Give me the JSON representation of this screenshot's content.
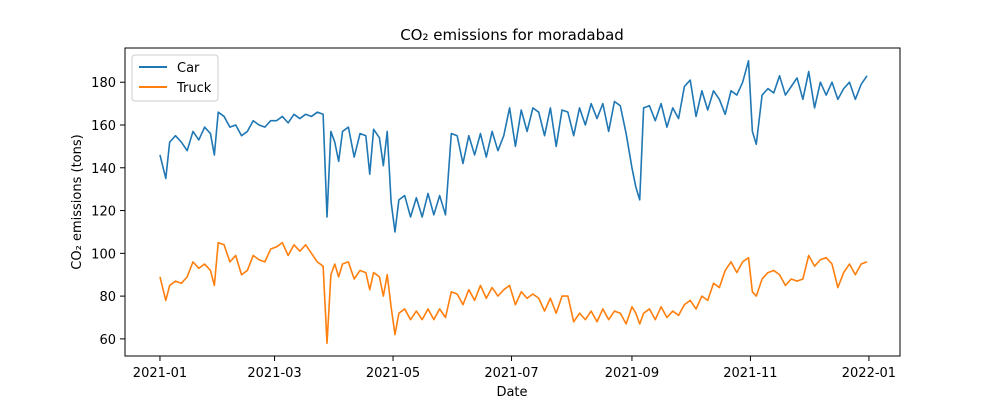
{
  "chart_data": {
    "type": "line",
    "title": "CO₂ emissions for moradabad",
    "xlabel": "Date",
    "ylabel": "CO₂ emissions (tons)",
    "xlim": [
      "2020-12-14",
      "2022-01-17"
    ],
    "ylim": [
      52,
      196
    ],
    "x_ticks": [
      "2021-01-01",
      "2021-03-01",
      "2021-05-01",
      "2021-07-01",
      "2021-09-01",
      "2021-11-01",
      "2022-01-01"
    ],
    "x_tick_labels": [
      "2021-01",
      "2021-03",
      "2021-05",
      "2021-07",
      "2021-09",
      "2021-11",
      "2022-01"
    ],
    "y_ticks": [
      60,
      80,
      100,
      120,
      140,
      160,
      180
    ],
    "y_tick_labels": [
      "60",
      "80",
      "100",
      "120",
      "140",
      "160",
      "180"
    ],
    "legend_position": "top-left",
    "grid": false,
    "series": [
      {
        "name": "Car",
        "color": "#1f77b4",
        "points": [
          [
            "2021-01-01",
            146
          ],
          [
            "2021-01-04",
            135
          ],
          [
            "2021-01-06",
            152
          ],
          [
            "2021-01-09",
            155
          ],
          [
            "2021-01-12",
            152
          ],
          [
            "2021-01-15",
            148
          ],
          [
            "2021-01-18",
            157
          ],
          [
            "2021-01-21",
            153
          ],
          [
            "2021-01-24",
            159
          ],
          [
            "2021-01-27",
            156
          ],
          [
            "2021-01-29",
            146
          ],
          [
            "2021-01-31",
            166
          ],
          [
            "2021-02-03",
            164
          ],
          [
            "2021-02-06",
            159
          ],
          [
            "2021-02-09",
            160
          ],
          [
            "2021-02-12",
            155
          ],
          [
            "2021-02-15",
            157
          ],
          [
            "2021-02-18",
            162
          ],
          [
            "2021-02-21",
            160
          ],
          [
            "2021-02-24",
            159
          ],
          [
            "2021-02-27",
            162
          ],
          [
            "2021-03-02",
            162
          ],
          [
            "2021-03-05",
            164
          ],
          [
            "2021-03-08",
            161
          ],
          [
            "2021-03-11",
            165
          ],
          [
            "2021-03-14",
            163
          ],
          [
            "2021-03-17",
            165
          ],
          [
            "2021-03-20",
            164
          ],
          [
            "2021-03-23",
            166
          ],
          [
            "2021-03-26",
            165
          ],
          [
            "2021-03-28",
            117
          ],
          [
            "2021-03-30",
            157
          ],
          [
            "2021-04-01",
            152
          ],
          [
            "2021-04-03",
            143
          ],
          [
            "2021-04-05",
            157
          ],
          [
            "2021-04-08",
            159
          ],
          [
            "2021-04-11",
            145
          ],
          [
            "2021-04-14",
            156
          ],
          [
            "2021-04-17",
            155
          ],
          [
            "2021-04-19",
            137
          ],
          [
            "2021-04-21",
            158
          ],
          [
            "2021-04-24",
            154
          ],
          [
            "2021-04-26",
            141
          ],
          [
            "2021-04-28",
            157
          ],
          [
            "2021-04-30",
            124
          ],
          [
            "2021-05-02",
            110
          ],
          [
            "2021-05-04",
            125
          ],
          [
            "2021-05-07",
            127
          ],
          [
            "2021-05-10",
            117
          ],
          [
            "2021-05-13",
            126
          ],
          [
            "2021-05-16",
            117
          ],
          [
            "2021-05-19",
            128
          ],
          [
            "2021-05-22",
            118
          ],
          [
            "2021-05-25",
            127
          ],
          [
            "2021-05-28",
            118
          ],
          [
            "2021-05-31",
            156
          ],
          [
            "2021-06-03",
            155
          ],
          [
            "2021-06-06",
            142
          ],
          [
            "2021-06-09",
            155
          ],
          [
            "2021-06-12",
            146
          ],
          [
            "2021-06-15",
            156
          ],
          [
            "2021-06-18",
            145
          ],
          [
            "2021-06-21",
            157
          ],
          [
            "2021-06-24",
            148
          ],
          [
            "2021-06-27",
            155
          ],
          [
            "2021-06-30",
            168
          ],
          [
            "2021-07-03",
            150
          ],
          [
            "2021-07-06",
            167
          ],
          [
            "2021-07-09",
            157
          ],
          [
            "2021-07-12",
            168
          ],
          [
            "2021-07-15",
            166
          ],
          [
            "2021-07-18",
            155
          ],
          [
            "2021-07-21",
            168
          ],
          [
            "2021-07-24",
            150
          ],
          [
            "2021-07-27",
            167
          ],
          [
            "2021-07-30",
            166
          ],
          [
            "2021-08-02",
            155
          ],
          [
            "2021-08-05",
            168
          ],
          [
            "2021-08-08",
            160
          ],
          [
            "2021-08-11",
            170
          ],
          [
            "2021-08-14",
            163
          ],
          [
            "2021-08-17",
            170
          ],
          [
            "2021-08-20",
            157
          ],
          [
            "2021-08-23",
            171
          ],
          [
            "2021-08-26",
            169
          ],
          [
            "2021-08-29",
            156
          ],
          [
            "2021-09-01",
            140
          ],
          [
            "2021-09-03",
            131
          ],
          [
            "2021-09-05",
            125
          ],
          [
            "2021-09-07",
            168
          ],
          [
            "2021-09-10",
            169
          ],
          [
            "2021-09-13",
            162
          ],
          [
            "2021-09-16",
            170
          ],
          [
            "2021-09-19",
            159
          ],
          [
            "2021-09-22",
            168
          ],
          [
            "2021-09-25",
            163
          ],
          [
            "2021-09-28",
            178
          ],
          [
            "2021-10-01",
            181
          ],
          [
            "2021-10-04",
            164
          ],
          [
            "2021-10-07",
            176
          ],
          [
            "2021-10-10",
            167
          ],
          [
            "2021-10-13",
            176
          ],
          [
            "2021-10-16",
            172
          ],
          [
            "2021-10-19",
            165
          ],
          [
            "2021-10-22",
            176
          ],
          [
            "2021-10-25",
            174
          ],
          [
            "2021-10-28",
            180
          ],
          [
            "2021-10-31",
            190
          ],
          [
            "2021-11-02",
            157
          ],
          [
            "2021-11-04",
            151
          ],
          [
            "2021-11-07",
            174
          ],
          [
            "2021-11-10",
            177
          ],
          [
            "2021-11-13",
            175
          ],
          [
            "2021-11-16",
            183
          ],
          [
            "2021-11-19",
            174
          ],
          [
            "2021-11-22",
            178
          ],
          [
            "2021-11-25",
            182
          ],
          [
            "2021-11-28",
            172
          ],
          [
            "2021-12-01",
            185
          ],
          [
            "2021-12-04",
            168
          ],
          [
            "2021-12-07",
            180
          ],
          [
            "2021-12-10",
            174
          ],
          [
            "2021-12-13",
            180
          ],
          [
            "2021-12-16",
            172
          ],
          [
            "2021-12-19",
            177
          ],
          [
            "2021-12-22",
            180
          ],
          [
            "2021-12-25",
            172
          ],
          [
            "2021-12-28",
            179
          ],
          [
            "2021-12-31",
            183
          ]
        ]
      },
      {
        "name": "Truck",
        "color": "#ff7f0e",
        "points": [
          [
            "2021-01-01",
            89
          ],
          [
            "2021-01-04",
            78
          ],
          [
            "2021-01-06",
            85
          ],
          [
            "2021-01-09",
            87
          ],
          [
            "2021-01-12",
            86
          ],
          [
            "2021-01-15",
            89
          ],
          [
            "2021-01-18",
            96
          ],
          [
            "2021-01-21",
            93
          ],
          [
            "2021-01-24",
            95
          ],
          [
            "2021-01-27",
            92
          ],
          [
            "2021-01-29",
            85
          ],
          [
            "2021-01-31",
            105
          ],
          [
            "2021-02-03",
            104
          ],
          [
            "2021-02-06",
            96
          ],
          [
            "2021-02-09",
            99
          ],
          [
            "2021-02-12",
            90
          ],
          [
            "2021-02-15",
            92
          ],
          [
            "2021-02-18",
            99
          ],
          [
            "2021-02-21",
            97
          ],
          [
            "2021-02-24",
            96
          ],
          [
            "2021-02-27",
            102
          ],
          [
            "2021-03-02",
            103
          ],
          [
            "2021-03-05",
            105
          ],
          [
            "2021-03-08",
            99
          ],
          [
            "2021-03-11",
            104
          ],
          [
            "2021-03-14",
            101
          ],
          [
            "2021-03-17",
            104
          ],
          [
            "2021-03-20",
            100
          ],
          [
            "2021-03-23",
            96
          ],
          [
            "2021-03-26",
            94
          ],
          [
            "2021-03-28",
            58
          ],
          [
            "2021-03-30",
            90
          ],
          [
            "2021-04-01",
            95
          ],
          [
            "2021-04-03",
            89
          ],
          [
            "2021-04-05",
            95
          ],
          [
            "2021-04-08",
            96
          ],
          [
            "2021-04-11",
            88
          ],
          [
            "2021-04-14",
            92
          ],
          [
            "2021-04-17",
            91
          ],
          [
            "2021-04-19",
            83
          ],
          [
            "2021-04-21",
            91
          ],
          [
            "2021-04-24",
            89
          ],
          [
            "2021-04-26",
            80
          ],
          [
            "2021-04-28",
            90
          ],
          [
            "2021-04-30",
            75
          ],
          [
            "2021-05-02",
            62
          ],
          [
            "2021-05-04",
            72
          ],
          [
            "2021-05-07",
            74
          ],
          [
            "2021-05-10",
            69
          ],
          [
            "2021-05-13",
            73
          ],
          [
            "2021-05-16",
            69
          ],
          [
            "2021-05-19",
            74
          ],
          [
            "2021-05-22",
            69
          ],
          [
            "2021-05-25",
            74
          ],
          [
            "2021-05-28",
            70
          ],
          [
            "2021-05-31",
            82
          ],
          [
            "2021-06-03",
            81
          ],
          [
            "2021-06-06",
            76
          ],
          [
            "2021-06-09",
            83
          ],
          [
            "2021-06-12",
            78
          ],
          [
            "2021-06-15",
            85
          ],
          [
            "2021-06-18",
            79
          ],
          [
            "2021-06-21",
            84
          ],
          [
            "2021-06-24",
            80
          ],
          [
            "2021-06-27",
            83
          ],
          [
            "2021-06-30",
            85
          ],
          [
            "2021-07-03",
            76
          ],
          [
            "2021-07-06",
            82
          ],
          [
            "2021-07-09",
            79
          ],
          [
            "2021-07-12",
            81
          ],
          [
            "2021-07-15",
            79
          ],
          [
            "2021-07-18",
            73
          ],
          [
            "2021-07-21",
            79
          ],
          [
            "2021-07-24",
            72
          ],
          [
            "2021-07-27",
            80
          ],
          [
            "2021-07-30",
            80
          ],
          [
            "2021-08-02",
            68
          ],
          [
            "2021-08-05",
            72
          ],
          [
            "2021-08-08",
            69
          ],
          [
            "2021-08-11",
            73
          ],
          [
            "2021-08-14",
            68
          ],
          [
            "2021-08-17",
            74
          ],
          [
            "2021-08-20",
            69
          ],
          [
            "2021-08-23",
            73
          ],
          [
            "2021-08-26",
            72
          ],
          [
            "2021-08-29",
            67
          ],
          [
            "2021-09-01",
            75
          ],
          [
            "2021-09-03",
            72
          ],
          [
            "2021-09-05",
            67
          ],
          [
            "2021-09-07",
            72
          ],
          [
            "2021-09-10",
            74
          ],
          [
            "2021-09-13",
            69
          ],
          [
            "2021-09-16",
            75
          ],
          [
            "2021-09-19",
            70
          ],
          [
            "2021-09-22",
            73
          ],
          [
            "2021-09-25",
            71
          ],
          [
            "2021-09-28",
            76
          ],
          [
            "2021-10-01",
            78
          ],
          [
            "2021-10-04",
            74
          ],
          [
            "2021-10-07",
            80
          ],
          [
            "2021-10-10",
            78
          ],
          [
            "2021-10-13",
            86
          ],
          [
            "2021-10-16",
            84
          ],
          [
            "2021-10-19",
            92
          ],
          [
            "2021-10-22",
            96
          ],
          [
            "2021-10-25",
            91
          ],
          [
            "2021-10-28",
            96
          ],
          [
            "2021-10-31",
            98
          ],
          [
            "2021-11-02",
            82
          ],
          [
            "2021-11-04",
            80
          ],
          [
            "2021-11-07",
            88
          ],
          [
            "2021-11-10",
            91
          ],
          [
            "2021-11-13",
            92
          ],
          [
            "2021-11-16",
            90
          ],
          [
            "2021-11-19",
            85
          ],
          [
            "2021-11-22",
            88
          ],
          [
            "2021-11-25",
            87
          ],
          [
            "2021-11-28",
            88
          ],
          [
            "2021-12-01",
            99
          ],
          [
            "2021-12-04",
            94
          ],
          [
            "2021-12-07",
            97
          ],
          [
            "2021-12-10",
            98
          ],
          [
            "2021-12-13",
            95
          ],
          [
            "2021-12-16",
            84
          ],
          [
            "2021-12-19",
            91
          ],
          [
            "2021-12-22",
            95
          ],
          [
            "2021-12-25",
            90
          ],
          [
            "2021-12-28",
            95
          ],
          [
            "2021-12-31",
            96
          ]
        ]
      }
    ]
  }
}
